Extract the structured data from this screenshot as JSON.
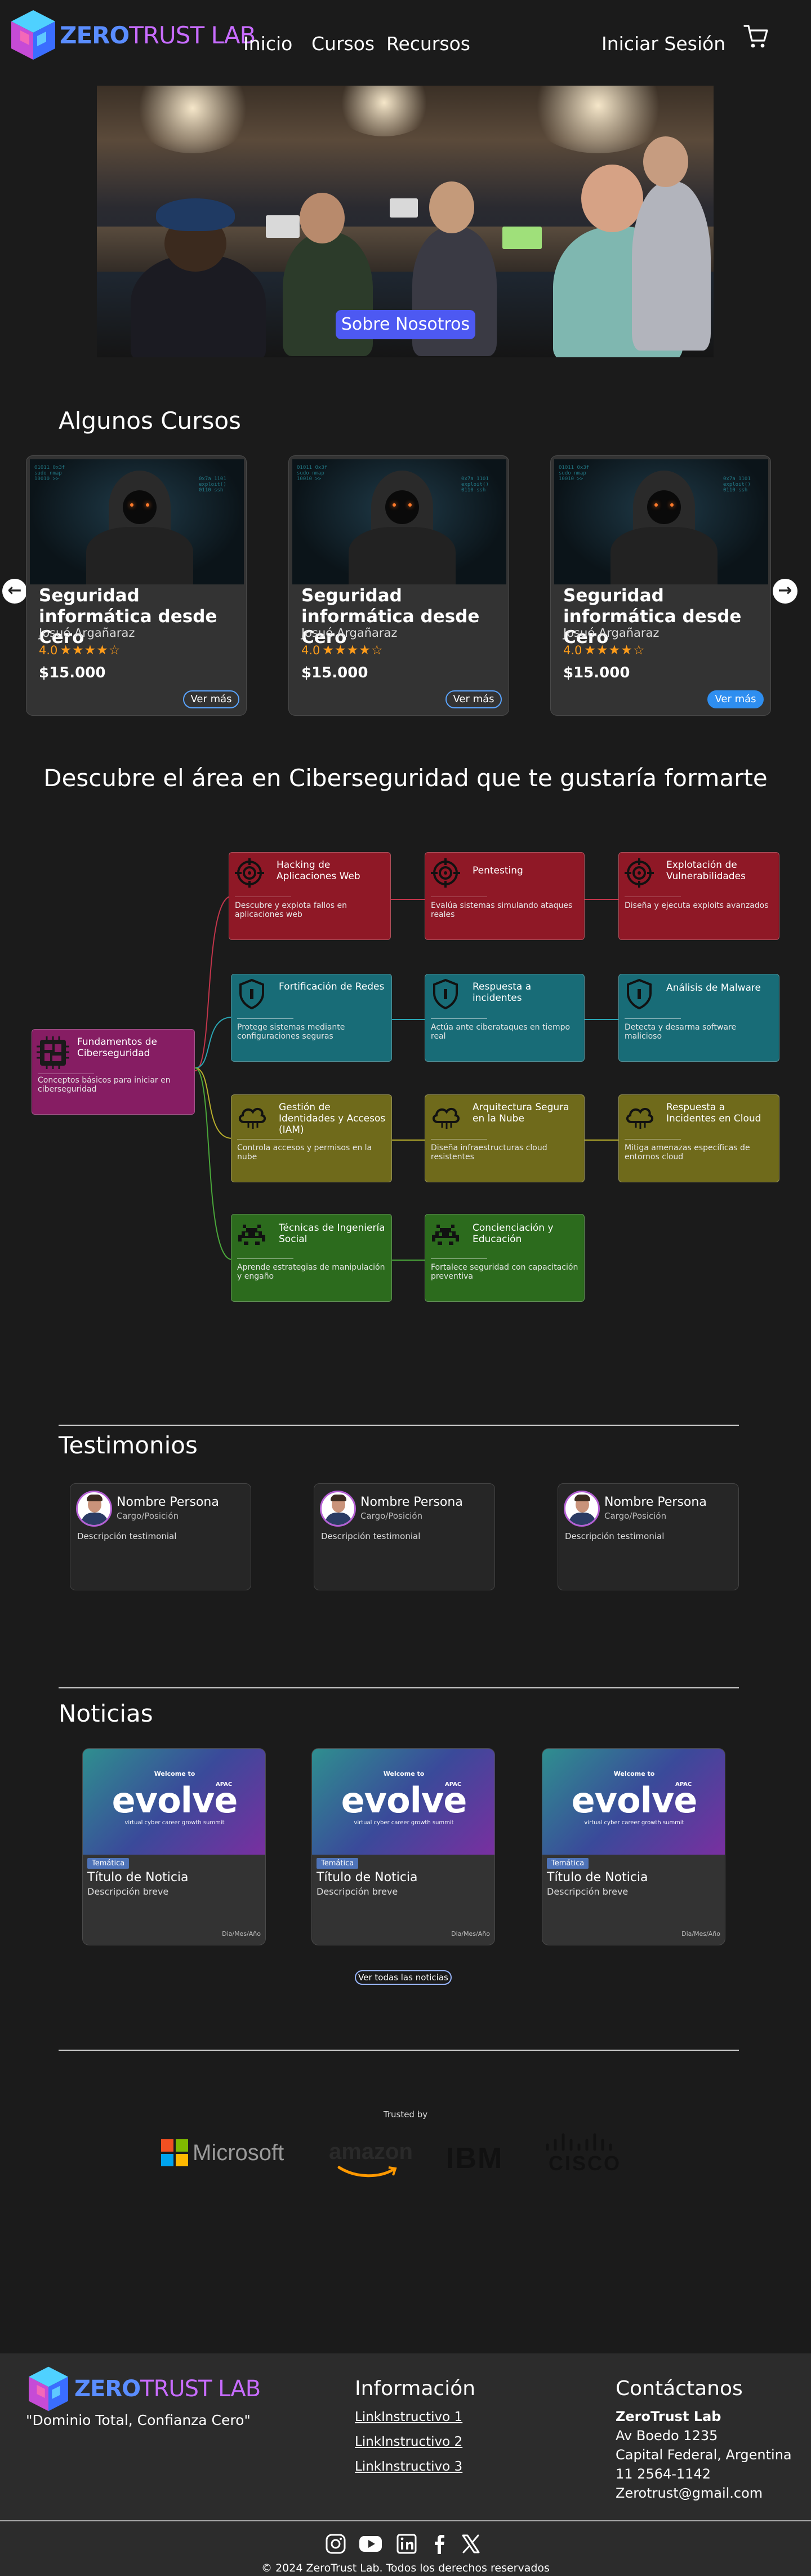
{
  "nav": {
    "logo_zero": "ZERO",
    "logo_trust": "TRUST LAB",
    "links": [
      "Inicio",
      "Cursos",
      "Recursos"
    ],
    "login": "Iniciar Sesión"
  },
  "hero": {
    "button": "Sobre Nosotros"
  },
  "courses": {
    "title": "Algunos Cursos",
    "items": [
      {
        "title": "Seguridad informática desde Cero",
        "author": "Josué Argañaraz",
        "rating": "4.0",
        "stars": "★★★★☆",
        "price": "$15.000",
        "button": "Ver más"
      },
      {
        "title": "Seguridad informática desde Cero",
        "author": "Josué Argañaraz",
        "rating": "4.0",
        "stars": "★★★★☆",
        "price": "$15.000",
        "button": "Ver más"
      },
      {
        "title": "Seguridad informática desde Cero",
        "author": "Josué Argañaraz",
        "rating": "4.0",
        "stars": "★★★★☆",
        "price": "$15.000",
        "button": "Ver más"
      }
    ],
    "prev_arrow": "←",
    "next_arrow": "→"
  },
  "roadmap": {
    "title": "Descubre el área en Ciberseguridad que te gustaría formarte",
    "root": {
      "title": "Fundamentos de Ciberseguridad",
      "desc": "Conceptos básicos para iniciar en ciberseguridad"
    },
    "nodes": [
      {
        "title": "Hacking de Aplicaciones Web",
        "desc": "Descubre y explota fallos en aplicaciones web",
        "icon": "crosshair-icon"
      },
      {
        "title": "Pentesting",
        "desc": "Evalúa sistemas simulando ataques reales",
        "icon": "crosshair-icon"
      },
      {
        "title": "Explotación de Vulnerabilidades",
        "desc": "Diseña y ejecuta exploits avanzados",
        "icon": "crosshair-icon"
      },
      {
        "title": "Fortificación de Redes",
        "desc": "Protege sistemas mediante configuraciones seguras",
        "icon": "shield-icon"
      },
      {
        "title": "Respuesta a incidentes",
        "desc": "Actúa ante ciberataques en tiempo real",
        "icon": "shield-icon"
      },
      {
        "title": "Análisis de Malware",
        "desc": "Detecta y desarma software malicioso",
        "icon": "shield-icon"
      },
      {
        "title": "Gestión de Identidades y Accesos (IAM)",
        "desc": "Controla accesos y permisos en la nube",
        "icon": "cloud-icon"
      },
      {
        "title": "Arquitectura Segura en la Nube",
        "desc": "Diseña infraestructuras cloud resistentes",
        "icon": "cloud-icon"
      },
      {
        "title": "Respuesta a Incidentes en Cloud",
        "desc": "Mitiga amenazas específicas de entornos cloud",
        "icon": "cloud-icon"
      },
      {
        "title": "Técnicas de Ingeniería Social",
        "desc": "Aprende estrategias de manipulación y engaño",
        "icon": "invader-icon"
      },
      {
        "title": "Concienciación y Educación",
        "desc": "Fortalece seguridad con capacitación preventiva",
        "icon": "invader-icon"
      }
    ],
    "colors": {
      "red": "#8f1826",
      "teal": "#186c77",
      "olive": "#6f6a1b",
      "green": "#2c6b1d",
      "magenta": "#861d63"
    }
  },
  "testimonials": {
    "title": "Testimonios",
    "items": [
      {
        "name": "Nombre Persona",
        "role": "Cargo/Posición",
        "desc": "Descripción testimonial"
      },
      {
        "name": "Nombre Persona",
        "role": "Cargo/Posición",
        "desc": "Descripción testimonial"
      },
      {
        "name": "Nombre Persona",
        "role": "Cargo/Posición",
        "desc": "Descripción testimonial"
      }
    ]
  },
  "news": {
    "title": "Noticias",
    "items": [
      {
        "banner_welcome": "Welcome to",
        "banner_evolve": "evolve",
        "banner_apac": "APAC",
        "banner_sub": "virtual cyber career growth summit",
        "tag": "Temática",
        "title": "Título de Noticia",
        "desc": "Descripción breve",
        "date": "Dia/Mes/Año"
      },
      {
        "banner_welcome": "Welcome to",
        "banner_evolve": "evolve",
        "banner_apac": "APAC",
        "banner_sub": "virtual cyber career growth summit",
        "tag": "Temática",
        "title": "Título de Noticia",
        "desc": "Descripción breve",
        "date": "Dia/Mes/Año"
      },
      {
        "banner_welcome": "Welcome to",
        "banner_evolve": "evolve",
        "banner_apac": "APAC",
        "banner_sub": "virtual cyber career growth summit",
        "tag": "Temática",
        "title": "Título de Noticia",
        "desc": "Descripción breve",
        "date": "Dia/Mes/Año"
      }
    ],
    "all_button": "Ver todas las noticias"
  },
  "trusted": {
    "label": "Trusted by",
    "brands": [
      "Microsoft",
      "amazon",
      "IBM",
      "CISCO"
    ]
  },
  "footer": {
    "logo_zero": "ZERO",
    "logo_trust": "TRUST LAB",
    "slogan": "\"Dominio Total, Confianza Cero\"",
    "info_title": "Información",
    "info_links": [
      "LinkInstructivo 1",
      "LinkInstructivo 2",
      "LinkInstructivo 3"
    ],
    "contact_title": "Contáctanos",
    "contact_name": "ZeroTrust Lab",
    "contact_lines": [
      "Av Boedo 1235",
      "Capital Federal, Argentina",
      "11 2564-1142",
      "Zerotrust@gmail.com"
    ],
    "social": [
      "instagram-icon",
      "youtube-icon",
      "linkedin-icon",
      "facebook-icon",
      "x-icon"
    ],
    "copyright": "© 2024 ZeroTrust Lab. Todos los derechos reservados"
  }
}
